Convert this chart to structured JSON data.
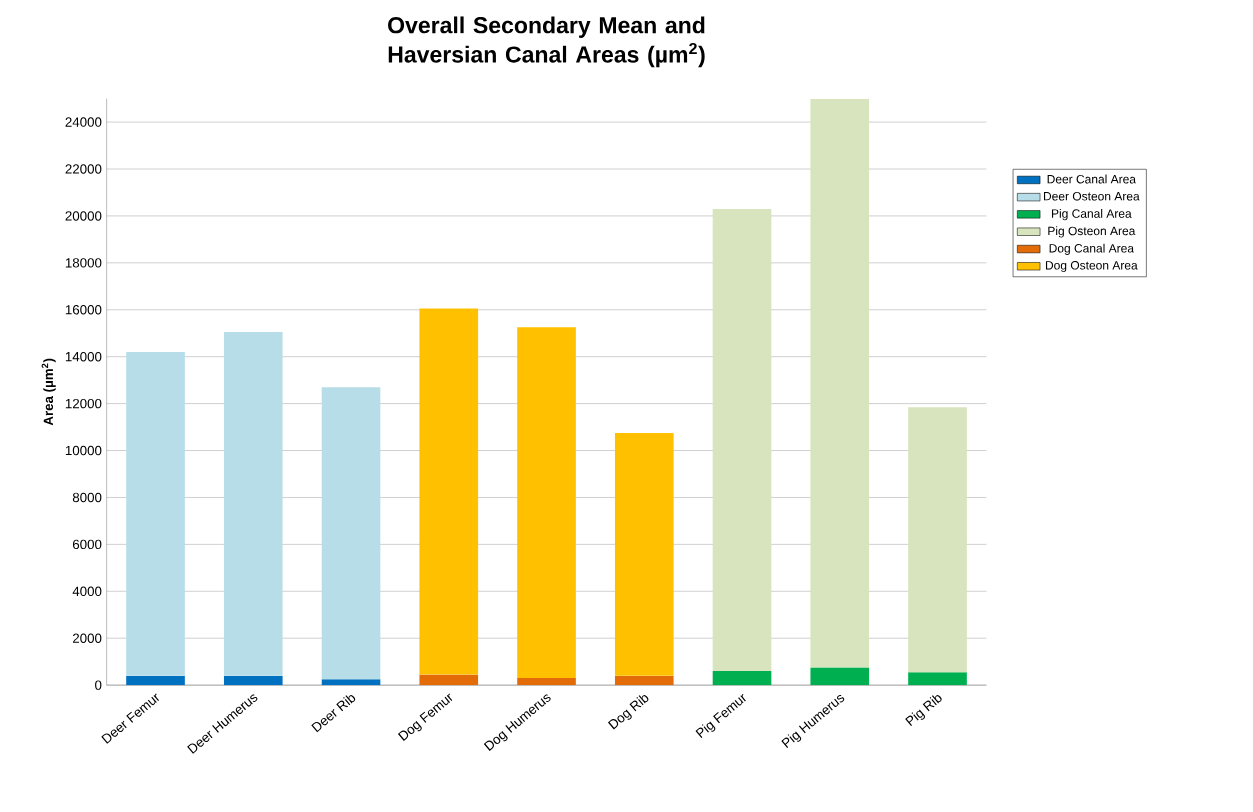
{
  "chart_data": {
    "type": "bar",
    "stacked": true,
    "title": "Overall Secondary Mean and Haversian Canal Areas (µm$^{2}$)",
    "ylabel": "Area (µm$^{2}$)",
    "categories": [
      "Deer Femur",
      "Deer Humerus",
      "Deer Rib",
      "Dog Femur",
      "Dog Humerus",
      "Dog Rib",
      "Pig Femur",
      "Pig Humerus",
      "Pig Rib"
    ],
    "series": [
      {
        "name": "Deer Canal Area",
        "color": "#0070c0",
        "values": [
          400,
          400,
          250,
          null,
          null,
          null,
          null,
          null,
          null
        ]
      },
      {
        "name": "Deer Osteon Area",
        "color": "#b7dde8",
        "values": [
          13800,
          14650,
          12450,
          null,
          null,
          null,
          null,
          null,
          null
        ]
      },
      {
        "name": "Pig Canal Area",
        "color": "#00b050",
        "values": [
          null,
          null,
          null,
          null,
          null,
          null,
          600,
          750,
          550
        ]
      },
      {
        "name": "Pig Osteon Area",
        "color": "#d7e4bd",
        "values": [
          null,
          null,
          null,
          null,
          null,
          null,
          19700,
          24250,
          11300
        ]
      },
      {
        "name": "Dog Canal Area",
        "color": "#e36c09",
        "values": [
          null,
          null,
          null,
          450,
          300,
          400,
          null,
          null,
          null
        ]
      },
      {
        "name": "Dog Osteon Area",
        "color": "#ffc000",
        "values": [
          null,
          null,
          null,
          15600,
          14950,
          10350,
          null,
          null,
          null
        ]
      }
    ],
    "ylim": [
      0,
      25000
    ],
    "yticks": [
      0,
      2000,
      4000,
      6000,
      8000,
      10000,
      12000,
      14000,
      16000,
      18000,
      20000,
      22000,
      24000
    ],
    "grid": "y",
    "legend": "right"
  }
}
